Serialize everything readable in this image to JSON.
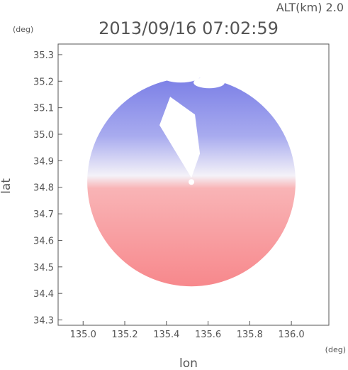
{
  "chart_data": {
    "type": "heatmap",
    "title": "2013/09/16 07:02:59",
    "altitude_label": "ALT(km) 2.0",
    "xlabel": "lon",
    "ylabel": "lat",
    "x_unit": "(deg)",
    "y_unit": "(deg)",
    "xlim": [
      134.88,
      136.18
    ],
    "ylim": [
      34.28,
      35.34
    ],
    "xticks": [
      {
        "value": 135.0,
        "label": "135.0"
      },
      {
        "value": 135.2,
        "label": "135.2"
      },
      {
        "value": 135.4,
        "label": "135.4"
      },
      {
        "value": 135.6,
        "label": "135.6"
      },
      {
        "value": 135.8,
        "label": "135.8"
      },
      {
        "value": 136.0,
        "label": "136.0"
      }
    ],
    "yticks": [
      {
        "value": 34.3,
        "label": "34.3"
      },
      {
        "value": 34.4,
        "label": "34.4"
      },
      {
        "value": 34.5,
        "label": "34.5"
      },
      {
        "value": 34.6,
        "label": "34.6"
      },
      {
        "value": 34.7,
        "label": "34.7"
      },
      {
        "value": 34.8,
        "label": "34.8"
      },
      {
        "value": 34.9,
        "label": "34.9"
      },
      {
        "value": 35.0,
        "label": "35.0"
      },
      {
        "value": 35.1,
        "label": "35.1"
      },
      {
        "value": 35.2,
        "label": "35.2"
      },
      {
        "value": 35.3,
        "label": "35.3"
      }
    ],
    "radar_center": {
      "lon": 135.52,
      "lat": 34.82
    },
    "colors": {
      "approaching": "#7b7fe6",
      "neutral": "#f4f2f8",
      "receding": "#f7888c",
      "axes": "#555555"
    },
    "grid": false
  }
}
